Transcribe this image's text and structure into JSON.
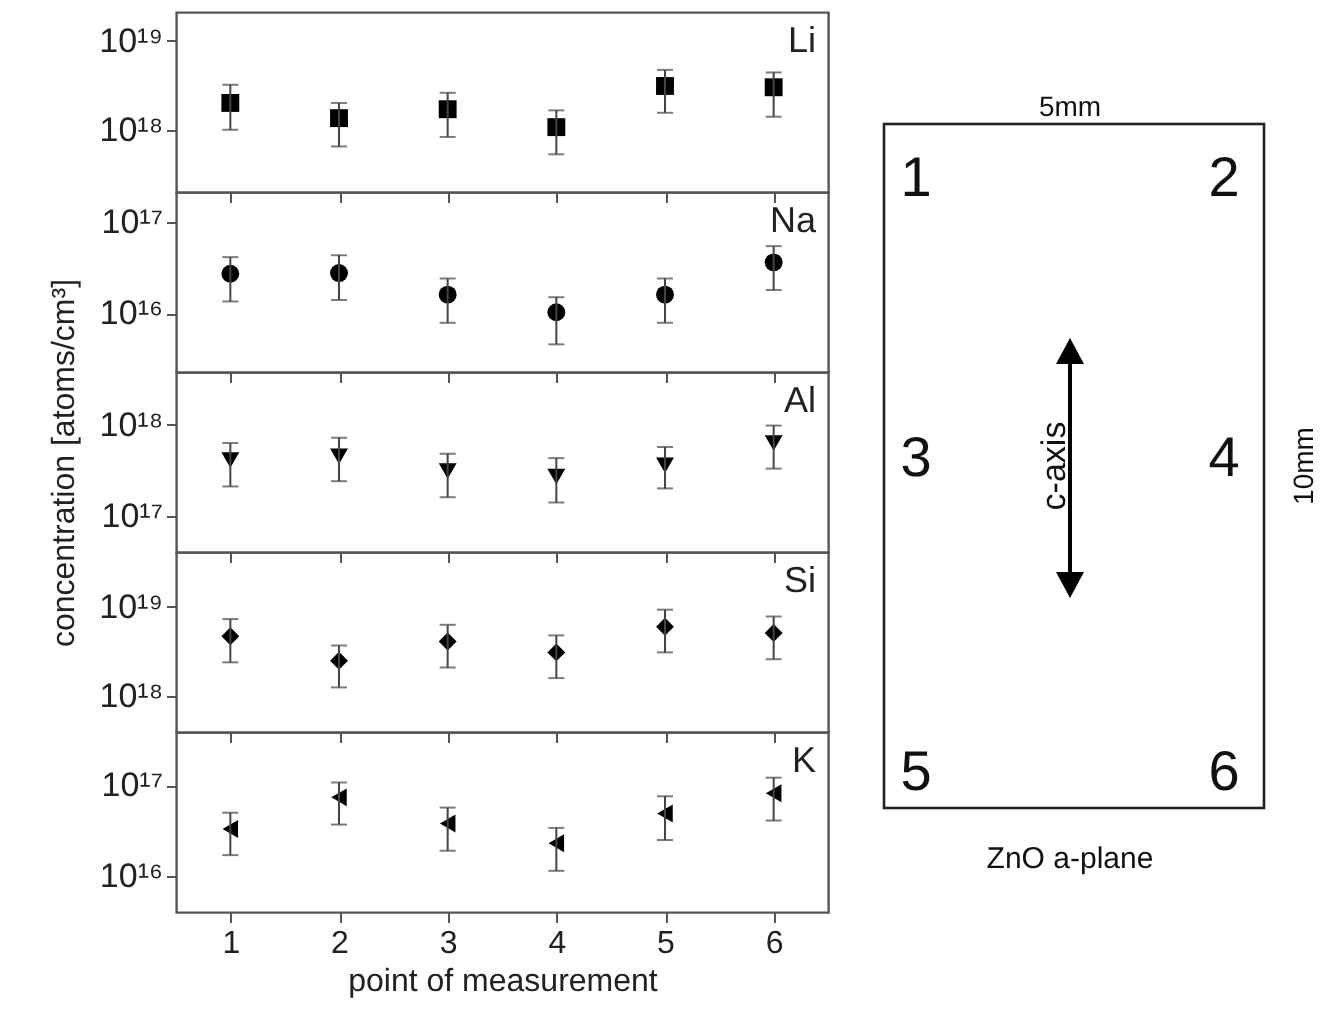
{
  "chart_data": [
    {
      "type": "scatter",
      "x": [
        1,
        2,
        3,
        4,
        5,
        6
      ],
      "xlim": [
        0.5,
        6.5
      ],
      "xticks": [
        1,
        2,
        3,
        4,
        5,
        6
      ],
      "ylim": [
        2e+17,
        2.1e+19
      ],
      "yticks": [
        {
          "value": 1e+18,
          "label": "10¹⁸"
        },
        {
          "value": 1e+19,
          "label": "10¹⁹"
        }
      ],
      "log": "y",
      "marker": "square",
      "tick_labels": "y",
      "series": [
        {
          "name": "Li",
          "color": "#000000",
          "values": [
            2e+18,
            1.35e+18,
            1.7e+18,
            1.07e+18,
            3.1e+18,
            3e+18
          ],
          "errors": [
            [
              1e+18,
              3.2e+18
            ],
            [
              6.5e+17,
              2e+18
            ],
            [
              8.3e+17,
              2.6e+18
            ],
            [
              5.3e+17,
              1.65e+18
            ],
            [
              1.55e+18,
              4.7e+18
            ],
            [
              1.4e+18,
              4.4e+18
            ]
          ]
        }
      ]
    },
    {
      "type": "scatter",
      "x": [
        1,
        2,
        3,
        4,
        5,
        6
      ],
      "xlim": [
        0.5,
        6.5
      ],
      "xticks": [
        1,
        2,
        3,
        4,
        5,
        6
      ],
      "ylim": [
        2300000000000000.0,
        2.1e+17
      ],
      "yticks": [
        {
          "value": 1e+16,
          "label": "10¹⁶"
        },
        {
          "value": 1e+17,
          "label": "10¹⁷"
        }
      ],
      "log": "y",
      "marker": "circle",
      "tick_labels": "y",
      "series": [
        {
          "name": "Na",
          "color": "#000000",
          "values": [
            2.7e+16,
            2.75e+16,
            1.6e+16,
            1.03e+16,
            1.6e+16,
            3.6e+16
          ],
          "errors": [
            [
              1.35e+16,
              4.1e+16
            ],
            [
              1.4e+16,
              4.3e+16
            ],
            [
              7900000000000000.0,
              2.4e+16
            ],
            [
              4600000000000000.0,
              1.5e+16
            ],
            [
              7900000000000000.0,
              2.4e+16
            ],
            [
              1.8e+16,
              5.4e+16
            ]
          ]
        }
      ]
    },
    {
      "type": "scatter",
      "x": [
        1,
        2,
        3,
        4,
        5,
        6
      ],
      "xlim": [
        0.5,
        6.5
      ],
      "xticks": [
        1,
        2,
        3,
        4,
        5,
        6
      ],
      "ylim": [
        4e+16,
        3.8e+18
      ],
      "yticks": [
        {
          "value": 1e+17,
          "label": "10¹⁷"
        },
        {
          "value": 1e+18,
          "label": "10¹⁸"
        }
      ],
      "log": "y",
      "marker": "triangle-down",
      "tick_labels": "y",
      "ylabel": "concentration [atoms/cm³]",
      "series": [
        {
          "name": "Al",
          "color": "#000000",
          "values": [
            4.1e+17,
            4.5e+17,
            3.1e+17,
            2.7e+17,
            3.6e+17,
            6.3e+17
          ],
          "errors": [
            [
              2.1e+17,
              6.3e+17
            ],
            [
              2.4e+17,
              7.2e+17
            ],
            [
              1.6e+17,
              4.8e+17
            ],
            [
              1.4e+17,
              4.3e+17
            ],
            [
              2e+17,
              5.7e+17
            ],
            [
              3.3e+17,
              9.8e+17
            ]
          ]
        }
      ]
    },
    {
      "type": "scatter",
      "x": [
        1,
        2,
        3,
        4,
        5,
        6
      ],
      "xlim": [
        0.5,
        6.5
      ],
      "xticks": [
        1,
        2,
        3,
        4,
        5,
        6
      ],
      "ylim": [
        4e+17,
        4.1e+19
      ],
      "yticks": [
        {
          "value": 1e+18,
          "label": "10¹⁸"
        },
        {
          "value": 1e+19,
          "label": "10¹⁹"
        }
      ],
      "log": "y",
      "marker": "diamond",
      "tick_labels": "y",
      "series": [
        {
          "name": "Si",
          "color": "#000000",
          "values": [
            4.7e+18,
            2.5e+18,
            4.1e+18,
            3.1e+18,
            6e+18,
            5.1e+18
          ],
          "errors": [
            [
              2.4e+18,
              7.3e+18
            ],
            [
              1.26e+18,
              3.7e+18
            ],
            [
              2.1e+18,
              6.3e+18
            ],
            [
              1.6e+18,
              4.8e+18
            ],
            [
              3.1e+18,
              9.3e+18
            ],
            [
              2.6e+18,
              7.8e+18
            ]
          ]
        }
      ]
    },
    {
      "type": "scatter",
      "x": [
        1,
        2,
        3,
        4,
        5,
        6
      ],
      "xlim": [
        0.5,
        6.5
      ],
      "xticks": [
        1,
        2,
        3,
        4,
        5,
        6
      ],
      "ylim": [
        4000000000000000.0,
        3.9e+17
      ],
      "yticks": [
        {
          "value": 1e+16,
          "label": "10¹⁶"
        },
        {
          "value": 1e+17,
          "label": "10¹⁷"
        }
      ],
      "log": "y",
      "marker": "triangle-left",
      "xlabel": "point of measurement",
      "series": [
        {
          "name": "K",
          "color": "#000000",
          "values": [
            3.3e+16,
            7.4e+16,
            3.8e+16,
            2.3e+16,
            4.9e+16,
            8.2e+16
          ],
          "errors": [
            [
              1.7e+16,
              5e+16
            ],
            [
              3.7e+16,
              1.08e+17
            ],
            [
              1.9e+16,
              5.7e+16
            ],
            [
              1.14e+16,
              3.4e+16
            ],
            [
              2.5e+16,
              7.6e+16
            ],
            [
              4.1e+16,
              1.22e+17
            ]
          ]
        }
      ]
    },
    {
      "type": "other",
      "annotations": [
        "5mm",
        "1",
        "2",
        "3",
        "4",
        "5",
        "6",
        "c-axis",
        "10mm",
        "ZnO a-plane"
      ]
    }
  ]
}
